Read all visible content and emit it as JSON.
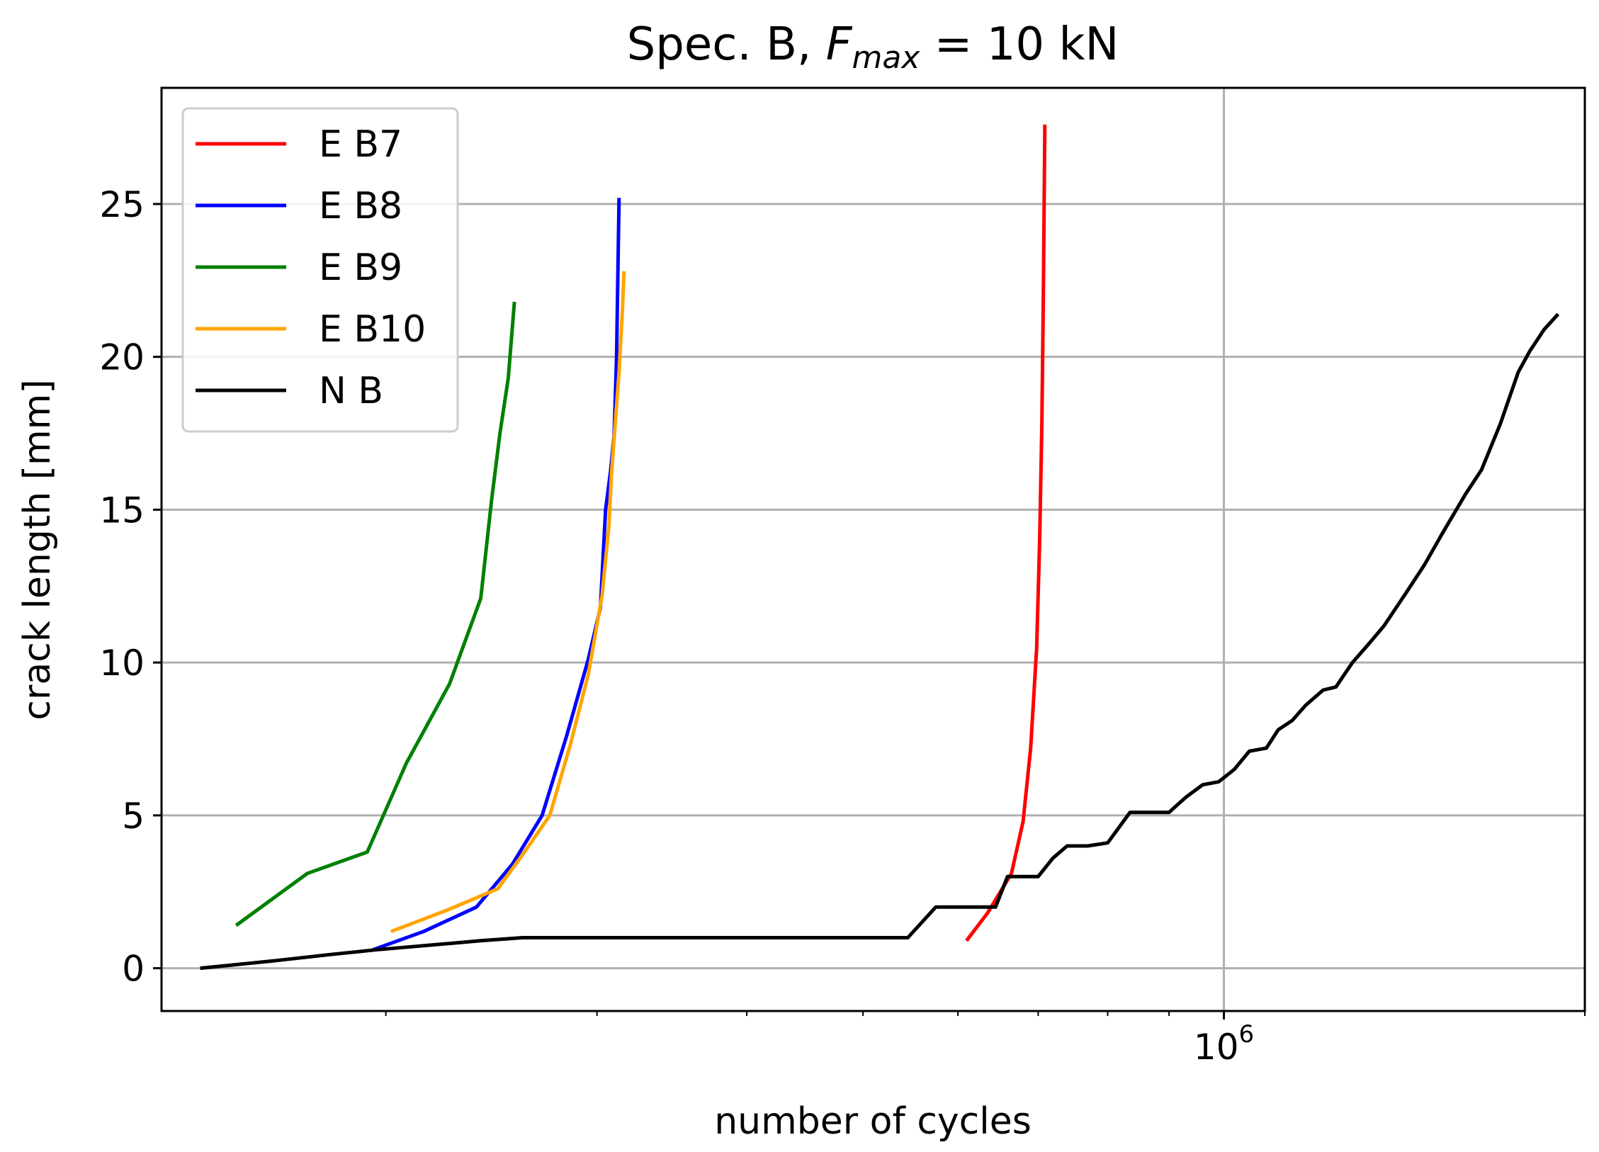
{
  "chart_data": {
    "type": "line",
    "title_prefix": "Spec. B,  ",
    "title_var": "F",
    "title_sub": "max",
    "title_suffix": " = 10 kN",
    "xlabel": "number of cycles",
    "ylabel": "crack length [mm]",
    "xscale": "log",
    "xlim": [
      130000,
      2000000
    ],
    "ylim": [
      -1.4,
      28.8
    ],
    "yticks": [
      0,
      5,
      10,
      15,
      20,
      25
    ],
    "xticks_major": [
      {
        "value": 1000000,
        "base": "10",
        "exp": "6"
      }
    ],
    "xticks_minor": [
      200000,
      300000,
      400000,
      500000,
      600000,
      700000,
      800000,
      900000,
      2000000
    ],
    "grid": true,
    "legend_position": "top-left",
    "series": [
      {
        "name": "E B7",
        "color": "#ff0000",
        "x": [
          610000,
          635000,
          665000,
          680000,
          690000,
          698000,
          702000,
          705000,
          707000,
          709000
        ],
        "y": [
          0.9,
          1.8,
          3.1,
          4.8,
          7.2,
          10.5,
          14.0,
          17.8,
          22.0,
          27.6
        ]
      },
      {
        "name": "E B8",
        "color": "#0000ff",
        "x": [
          195000,
          215000,
          238000,
          255000,
          270000,
          283000,
          295000,
          302000,
          305000,
          308000,
          310000,
          311500,
          313000
        ],
        "y": [
          0.6,
          1.2,
          2.0,
          3.4,
          5.0,
          7.6,
          10.1,
          11.8,
          15.0,
          16.3,
          17.4,
          20.0,
          25.2
        ]
      },
      {
        "name": "E B9",
        "color": "#008000",
        "x": [
          150000,
          172000,
          193000,
          208000,
          226000,
          240000,
          245000,
          249000,
          253000,
          256000
        ],
        "y": [
          1.4,
          3.1,
          3.8,
          6.7,
          9.3,
          12.1,
          15.3,
          17.5,
          19.3,
          21.8
        ]
      },
      {
        "name": "E B10",
        "color": "#ffa500",
        "x": [
          202000,
          225000,
          248000,
          261000,
          274000,
          285000,
          295000,
          303000,
          307000,
          308500,
          310000,
          313000,
          315000,
          316000
        ],
        "y": [
          1.2,
          1.9,
          2.6,
          3.8,
          5.0,
          7.3,
          9.6,
          12.2,
          14.5,
          16.2,
          17.3,
          19.5,
          21.5,
          22.8
        ]
      },
      {
        "name": "N B",
        "color": "#000000",
        "x": [
          140000,
          162000,
          180000,
          196000,
          240000,
          260000,
          300000,
          380000,
          450000,
          520000,
          545000,
          575000,
          595000,
          625000,
          645000,
          660000,
          680000,
          700000,
          720000,
          740000,
          770000,
          800000,
          835000,
          870000,
          900000,
          930000,
          960000,
          990000,
          1020000,
          1050000,
          1085000,
          1110000,
          1140000,
          1170000,
          1210000,
          1240000,
          1280000,
          1320000,
          1360000,
          1420000,
          1470000,
          1520000,
          1590000,
          1640000,
          1700000,
          1760000,
          1800000,
          1850000,
          1900000
        ],
        "y": [
          0.0,
          0.25,
          0.45,
          0.6,
          0.9,
          1.0,
          1.0,
          1.0,
          1.0,
          1.0,
          1.0,
          2.0,
          2.0,
          2.0,
          2.0,
          3.0,
          3.0,
          3.0,
          3.6,
          4.0,
          4.0,
          4.1,
          5.1,
          5.1,
          5.1,
          5.6,
          6.0,
          6.1,
          6.5,
          7.1,
          7.2,
          7.8,
          8.1,
          8.6,
          9.1,
          9.2,
          10.0,
          10.6,
          11.2,
          12.3,
          13.2,
          14.2,
          15.5,
          16.3,
          17.8,
          19.5,
          20.2,
          20.9,
          21.4
        ]
      }
    ]
  }
}
